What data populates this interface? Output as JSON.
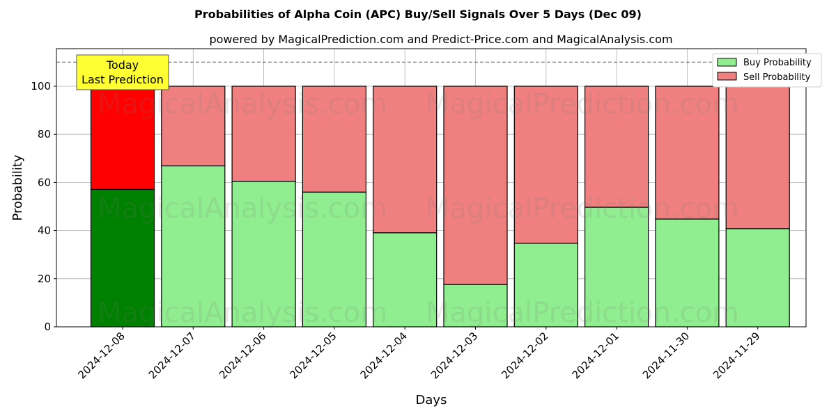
{
  "chart_data": {
    "type": "bar",
    "stacked": true,
    "title": "Probabilities of Alpha Coin (APC) Buy/Sell Signals Over 5 Days (Dec 09)",
    "subtitle": "powered by MagicalPrediction.com and Predict-Price.com and MagicalAnalysis.com",
    "xlabel": "Days",
    "ylabel": "Probability",
    "ylim": [
      0,
      115.6
    ],
    "yticks": [
      0,
      20,
      40,
      60,
      80,
      100
    ],
    "categories": [
      "2024-12-08",
      "2024-12-07",
      "2024-12-06",
      "2024-12-05",
      "2024-12-04",
      "2024-12-03",
      "2024-12-02",
      "2024-12-01",
      "2024-11-30",
      "2024-11-29"
    ],
    "series": [
      {
        "name": "Buy Probability",
        "color": "#90ee90",
        "highlight_color": "#008000",
        "values": [
          57.1,
          66.9,
          60.5,
          56.0,
          39.1,
          17.6,
          34.7,
          49.7,
          44.8,
          40.8
        ]
      },
      {
        "name": "Sell Probability",
        "color": "#f08080",
        "highlight_color": "#ff0000",
        "values": [
          42.9,
          33.1,
          39.5,
          44.0,
          60.9,
          82.4,
          65.3,
          50.3,
          55.2,
          59.2
        ]
      }
    ],
    "reference_line": 110,
    "annotation": [
      "Today",
      "Last Prediction"
    ],
    "legend": "top-right",
    "grid": true,
    "watermarks": [
      "MagicalAnalysis.com",
      "MagicalPrediction.com"
    ]
  }
}
